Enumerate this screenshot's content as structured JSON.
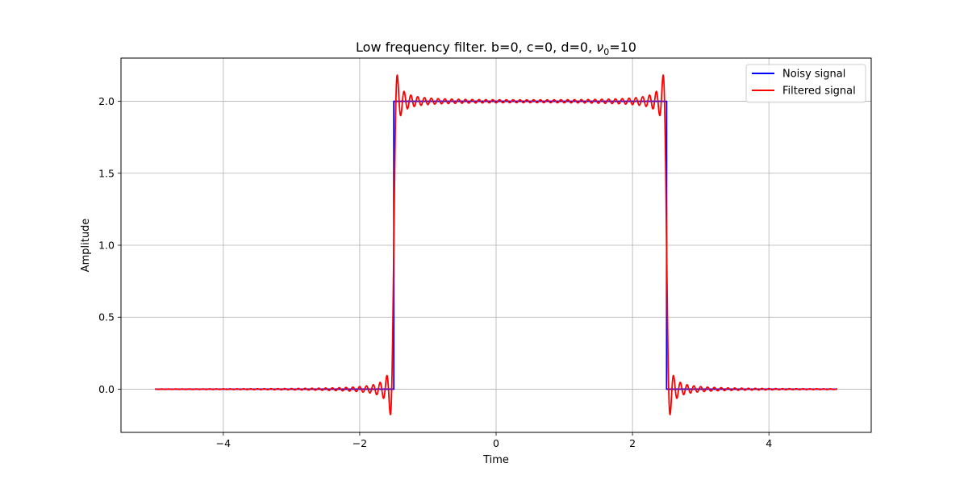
{
  "chart_data": {
    "type": "line",
    "title_prefix": "Low frequency filter. b=0, c=0, d=0, ",
    "title_nu": "ν",
    "title_sub": "0",
    "title_suffix": "=10",
    "xlabel": "Time",
    "ylabel": "Amplitude",
    "xlim": [
      -5.5,
      5.5
    ],
    "ylim": [
      -0.3,
      2.3
    ],
    "xticks": [
      -4,
      -2,
      0,
      2,
      4
    ],
    "xtick_labels": [
      "−4",
      "−2",
      "0",
      "2",
      "4"
    ],
    "yticks": [
      0.0,
      0.5,
      1.0,
      1.5,
      2.0
    ],
    "ytick_labels": [
      "0.0",
      "0.5",
      "1.0",
      "1.5",
      "2.0"
    ],
    "grid": true,
    "legend_position": "top-right",
    "series": [
      {
        "name": "Noisy signal",
        "color": "#0000ff",
        "kind": "square_pulse",
        "x_range": [
          -5,
          5
        ],
        "edges": [
          -1.5,
          2.5
        ],
        "low": 0,
        "high": 2
      },
      {
        "name": "Filtered signal",
        "color": "#ff0000",
        "kind": "lowpass_filtered_square_pulse",
        "x_range": [
          -5,
          5
        ],
        "edges": [
          -1.5,
          2.5
        ],
        "low": 0,
        "high": 2,
        "cutoff_frequency": 10
      }
    ]
  }
}
